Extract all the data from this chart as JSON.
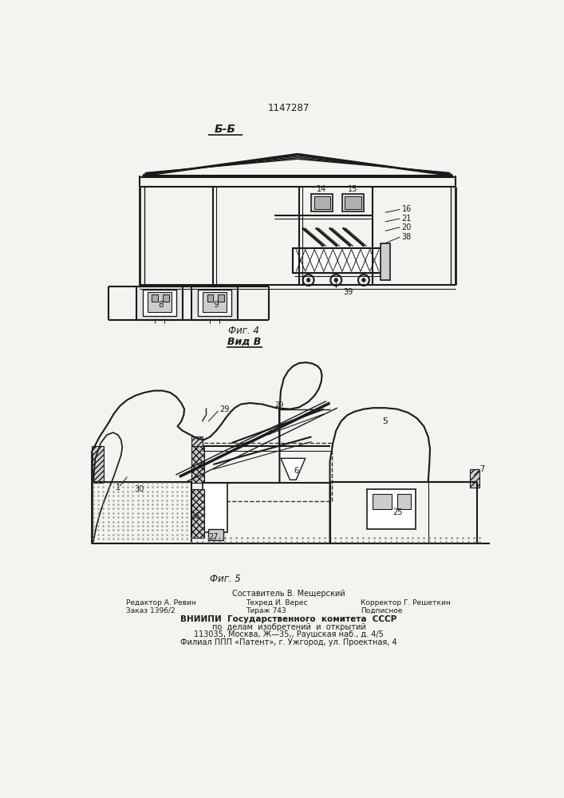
{
  "patent_number": "1147287",
  "fig4_label": "Фиг. 4",
  "view_label": "Вид В",
  "fig5_label": "Фиг. 5",
  "section_label": "Б-Б",
  "footer_line1": "Составитель В. Мещерский",
  "footer_line2_left": "Редактор А. Ревин",
  "footer_line2_mid": "Техред И. Верес",
  "footer_line2_right": "Корректор Г. Решеткин",
  "footer_line3_left": "Заказ 1396/2",
  "footer_line3_mid": "Тираж 743",
  "footer_line3_right": "Подписное",
  "footer_line4": "ВНИИПИ  Государственного  комитета  СССР",
  "footer_line5": "по  делам  изобретений  и  открытий",
  "footer_line6": "113035, Москва, Ж—35,, Раушская наб., д. 4/5",
  "footer_line7": "Филиал ППП «Патент», г. Ужгород, ул. Проектная, 4",
  "paper_color": "#f5f3ef"
}
